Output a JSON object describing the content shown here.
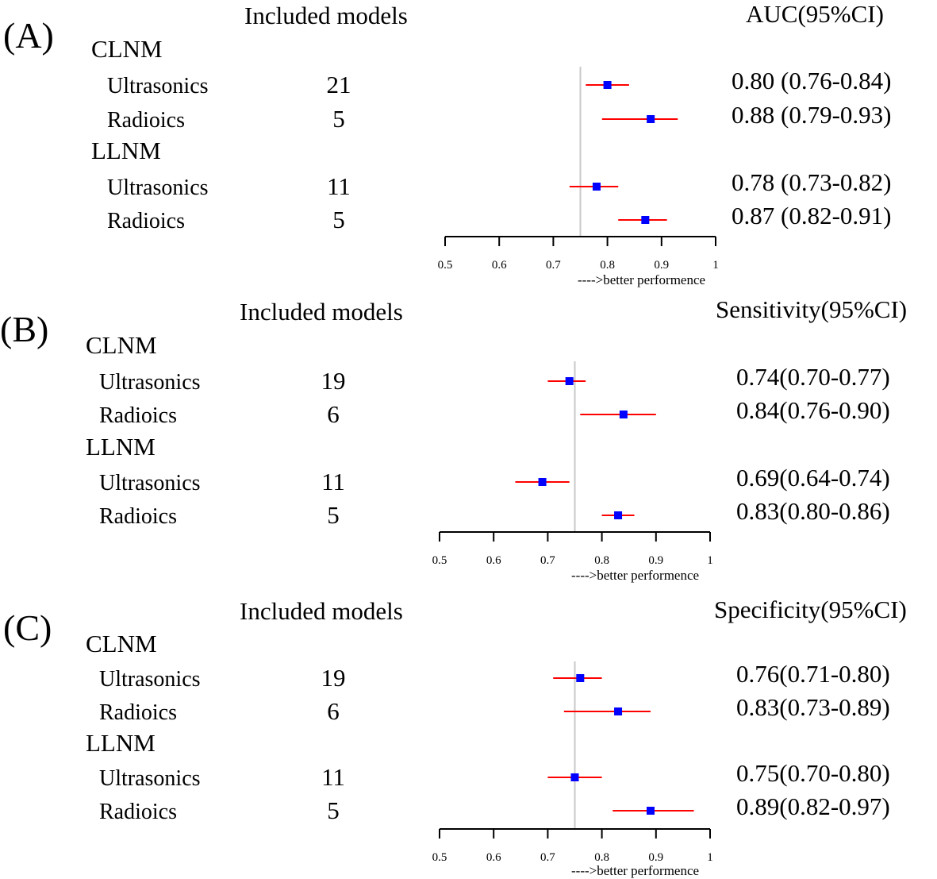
{
  "chart_data": [
    {
      "type": "forest",
      "panel_label": "(A)",
      "column_header_models": "Included models",
      "column_header_metric": "AUC(95%CI)",
      "groups": [
        {
          "name": "CLNM",
          "rows": [
            {
              "label": "Ultrasonics",
              "n": "21",
              "estimate": 0.8,
              "lower": 0.76,
              "upper": 0.84,
              "ci_text": "0.80 (0.76-0.84)"
            },
            {
              "label": "Radioics",
              "n": "5",
              "estimate": 0.88,
              "lower": 0.79,
              "upper": 0.93,
              "ci_text": "0.88 (0.79-0.93)"
            }
          ]
        },
        {
          "name": "LLNM",
          "rows": [
            {
              "label": "Ultrasonics",
              "n": "11",
              "estimate": 0.78,
              "lower": 0.73,
              "upper": 0.82,
              "ci_text": "0.78 (0.73-0.82)"
            },
            {
              "label": "Radioics",
              "n": "5",
              "estimate": 0.87,
              "lower": 0.82,
              "upper": 0.91,
              "ci_text": "0.87 (0.82-0.91)"
            }
          ]
        }
      ],
      "reference_line": 0.75,
      "xlim": [
        0.5,
        1
      ],
      "ticks": [
        "0.5",
        "0.6",
        "0.7",
        "0.8",
        "0.9",
        "1"
      ],
      "xlabel": "---->better performence"
    },
    {
      "type": "forest",
      "panel_label": "(B)",
      "column_header_models": "Included models",
      "column_header_metric": "Sensitivity(95%CI)",
      "groups": [
        {
          "name": "CLNM",
          "rows": [
            {
              "label": "Ultrasonics",
              "n": "19",
              "estimate": 0.74,
              "lower": 0.7,
              "upper": 0.77,
              "ci_text": "0.74(0.70-0.77)"
            },
            {
              "label": "Radioics",
              "n": "6",
              "estimate": 0.84,
              "lower": 0.76,
              "upper": 0.9,
              "ci_text": "0.84(0.76-0.90)"
            }
          ]
        },
        {
          "name": "LLNM",
          "rows": [
            {
              "label": "Ultrasonics",
              "n": "11",
              "estimate": 0.69,
              "lower": 0.64,
              "upper": 0.74,
              "ci_text": "0.69(0.64-0.74)"
            },
            {
              "label": "Radioics",
              "n": "5",
              "estimate": 0.83,
              "lower": 0.8,
              "upper": 0.86,
              "ci_text": "0.83(0.80-0.86)"
            }
          ]
        }
      ],
      "reference_line": 0.75,
      "xlim": [
        0.5,
        1
      ],
      "ticks": [
        "0.5",
        "0.6",
        "0.7",
        "0.8",
        "0.9",
        "1"
      ],
      "xlabel": "---->better performence"
    },
    {
      "type": "forest",
      "panel_label": "(C)",
      "column_header_models": "Included models",
      "column_header_metric": "Specificity(95%CI)",
      "groups": [
        {
          "name": "CLNM",
          "rows": [
            {
              "label": "Ultrasonics",
              "n": "19",
              "estimate": 0.76,
              "lower": 0.71,
              "upper": 0.8,
              "ci_text": "0.76(0.71-0.80)"
            },
            {
              "label": "Radioics",
              "n": "6",
              "estimate": 0.83,
              "lower": 0.73,
              "upper": 0.89,
              "ci_text": "0.83(0.73-0.89)"
            }
          ]
        },
        {
          "name": "LLNM",
          "rows": [
            {
              "label": "Ultrasonics",
              "n": "11",
              "estimate": 0.75,
              "lower": 0.7,
              "upper": 0.8,
              "ci_text": "0.75(0.70-0.80)"
            },
            {
              "label": "Radioics",
              "n": "5",
              "estimate": 0.89,
              "lower": 0.82,
              "upper": 0.97,
              "ci_text": "0.89(0.82-0.97)"
            }
          ]
        }
      ],
      "reference_line": 0.75,
      "xlim": [
        0.5,
        1
      ],
      "ticks": [
        "0.5",
        "0.6",
        "0.7",
        "0.8",
        "0.9",
        "1"
      ],
      "xlabel": "---->better performence"
    }
  ],
  "colors": {
    "ci_line": "#ff0000",
    "point": "#0000ff",
    "reference_line": "#c8c8c8",
    "axis": "#000000"
  }
}
